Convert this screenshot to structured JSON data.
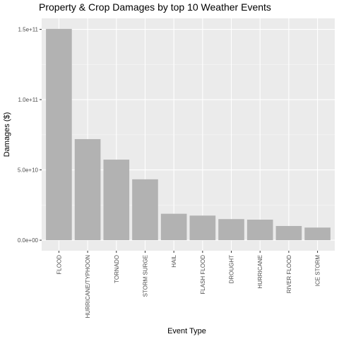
{
  "chart_data": {
    "type": "bar",
    "title": "Property & Crop Damages by top 10 Weather Events",
    "xlabel": "Event Type",
    "ylabel": "Damages ($)",
    "categories": [
      "FLOOD",
      "HURRICANE/TYPHOON",
      "TORNADO",
      "STORM SURGE",
      "HAIL",
      "FLASH FLOOD",
      "DROUGHT",
      "HURRICANE",
      "RIVER FLOOD",
      "ICE STORM"
    ],
    "values": [
      150300000000,
      71900000000,
      57300000000,
      43300000000,
      18800000000,
      17500000000,
      15000000000,
      14600000000,
      10100000000,
      8970000000
    ],
    "ylim": [
      -7500000000,
      157800000000
    ],
    "yticks": [
      0,
      50000000000,
      100000000000,
      150000000000
    ],
    "ytick_labels": [
      "0.0e+00",
      "5.0e+10",
      "1.0e+11",
      "1.5e+11"
    ],
    "grid": true,
    "legend": "none",
    "colors": {
      "bar": "#b2b2b2",
      "panel": "#ebebeb",
      "grid_major": "#ffffff",
      "tick": "#333333"
    }
  }
}
